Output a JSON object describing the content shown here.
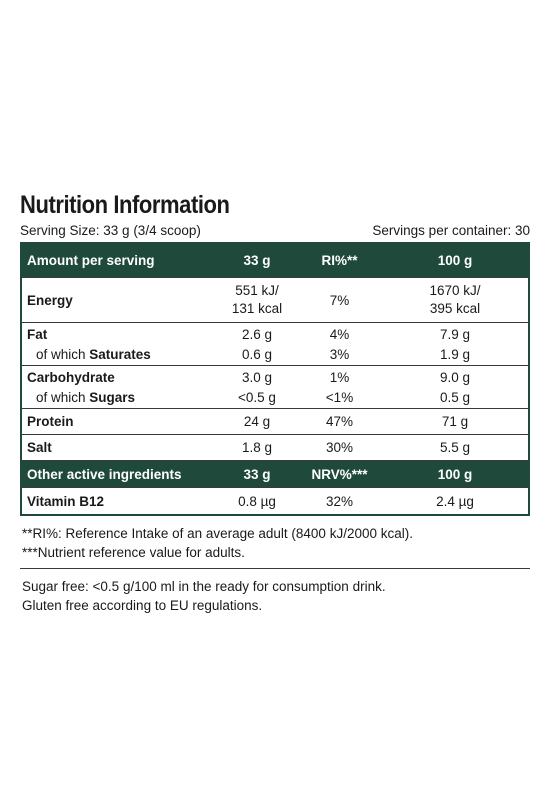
{
  "title": "Nutrition Information",
  "serving_size": "Serving Size: 33 g (3/4 scoop)",
  "servings_per_container": "Servings per container: 30",
  "header": {
    "c1": "Amount per serving",
    "c2": "33 g",
    "c3": "RI%**",
    "c4": "100 g"
  },
  "energy": {
    "label": "Energy",
    "v1a": "551 kJ/",
    "v1b": "131 kcal",
    "ri": "7%",
    "v2a": "1670 kJ/",
    "v2b": "395 kcal"
  },
  "fat": {
    "label": "Fat",
    "v1": "2.6 g",
    "ri": "4%",
    "v2": "7.9 g"
  },
  "saturates": {
    "prefix": "of which ",
    "label": "Saturates",
    "v1": "0.6 g",
    "ri": "3%",
    "v2": "1.9 g"
  },
  "carbohydrate": {
    "label": "Carbohydrate",
    "v1": "3.0 g",
    "ri": "1%",
    "v2": "9.0 g"
  },
  "sugars": {
    "prefix": "of which ",
    "label": "Sugars",
    "v1": "<0.5 g",
    "ri": "<1%",
    "v2": "0.5 g"
  },
  "protein": {
    "label": "Protein",
    "v1": "24 g",
    "ri": "47%",
    "v2": "71 g"
  },
  "salt": {
    "label": "Salt",
    "v1": "1.8 g",
    "ri": "30%",
    "v2": "5.5 g"
  },
  "header2": {
    "c1": "Other active ingredients",
    "c2": "33 g",
    "c3": "NRV%***",
    "c4": "100 g"
  },
  "vitamin_b12": {
    "label": "Vitamin B12",
    "v1": "0.8 µg",
    "nrv": "32%",
    "v2": "2.4 µg"
  },
  "notes": [
    "**RI%: Reference Intake of an average adult (8400 kJ/2000 kcal).",
    "***Nutrient reference value for adults."
  ],
  "extra": [
    "Sugar free: <0.5 g/100 ml in the ready for consumption drink.",
    "Gluten free according to EU regulations."
  ],
  "colors": {
    "header_bg": "#1f4a3b",
    "header_text": "#ffffff"
  }
}
